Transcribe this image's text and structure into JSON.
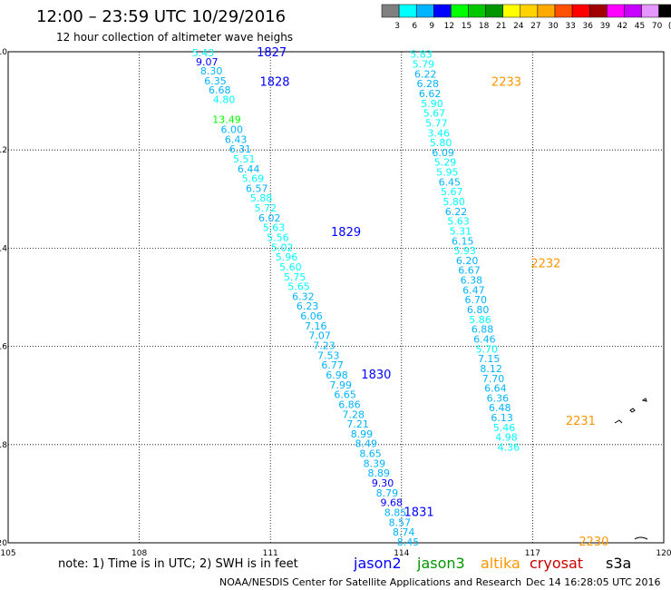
{
  "header": {
    "title": "12:00 – 23:59 UTC 10/29/2016",
    "subtitle": "12 hour collection of altimeter wave heighs"
  },
  "legend": {
    "labels": [
      "3",
      "6",
      "9",
      "12",
      "15",
      "18",
      "21",
      "24",
      "27",
      "30",
      "33",
      "36",
      "39",
      "42",
      "45",
      "70",
      "(ft)"
    ],
    "colors": [
      "#808080",
      "#00ffff",
      "#00b4ff",
      "#0000ff",
      "#00ff00",
      "#00c800",
      "#009600",
      "#ffff00",
      "#ffd200",
      "#ffaa00",
      "#ff5000",
      "#ff0000",
      "#a00000",
      "#ff00ff",
      "#c800ff",
      "#e696ff",
      "#000000"
    ]
  },
  "footer": {
    "note": "note:  1) Time is in UTC;  2) SWH is in feet",
    "missions": [
      {
        "name": "jason2",
        "color": "#0000ff"
      },
      {
        "name": "jason3",
        "color": "#009600"
      },
      {
        "name": "altika",
        "color": "#ff9600"
      },
      {
        "name": "cryosat",
        "color": "#c80000"
      },
      {
        "name": "s3a",
        "color": "#000000"
      }
    ],
    "credit": "NOAA/NESDIS Center for Satellite Applications and Research",
    "timestamp": "Dec 14 16:28:05 UTC 2016"
  },
  "chart_data": {
    "type": "scatter",
    "xlim": [
      105,
      120
    ],
    "ylim": [
      -20,
      -10
    ],
    "x_ticks": [
      "105",
      "108",
      "111",
      "114",
      "117",
      "120"
    ],
    "y_ticks": [
      "-10",
      "-12",
      "-14",
      "-16",
      "-18",
      "-20"
    ],
    "grid": true,
    "tracks": [
      {
        "mission": "jason2",
        "points": [
          {
            "lon": 109.46,
            "lat": -10.02,
            "swh": "5.43"
          },
          {
            "lon": 109.55,
            "lat": -10.2,
            "swh": "9.07"
          },
          {
            "lon": 109.65,
            "lat": -10.39,
            "swh": "8.30"
          },
          {
            "lon": 109.74,
            "lat": -10.59,
            "swh": "6.35"
          },
          {
            "lon": 109.84,
            "lat": -10.78,
            "swh": "6.68"
          },
          {
            "lon": 109.94,
            "lat": -10.97,
            "swh": "4.80"
          },
          {
            "lon": 110.0,
            "lat": -11.38,
            "swh": "13.49"
          },
          {
            "lon": 110.12,
            "lat": -11.58,
            "swh": "6.00"
          },
          {
            "lon": 110.21,
            "lat": -11.78,
            "swh": "6.43"
          },
          {
            "lon": 110.31,
            "lat": -11.98,
            "swh": "6.31"
          },
          {
            "lon": 110.4,
            "lat": -12.18,
            "swh": "5.51"
          },
          {
            "lon": 110.5,
            "lat": -12.38,
            "swh": "6.44"
          },
          {
            "lon": 110.6,
            "lat": -12.58,
            "swh": "5.69"
          },
          {
            "lon": 110.69,
            "lat": -12.78,
            "swh": "6.57"
          },
          {
            "lon": 110.79,
            "lat": -12.98,
            "swh": "5.88"
          },
          {
            "lon": 110.89,
            "lat": -13.18,
            "swh": "5.72"
          },
          {
            "lon": 110.98,
            "lat": -13.38,
            "swh": "6.02"
          },
          {
            "lon": 111.08,
            "lat": -13.58,
            "swh": "5.63"
          },
          {
            "lon": 111.17,
            "lat": -13.78,
            "swh": "5.56"
          },
          {
            "lon": 111.27,
            "lat": -13.98,
            "swh": "5.02"
          },
          {
            "lon": 111.37,
            "lat": -14.18,
            "swh": "5.96"
          },
          {
            "lon": 111.46,
            "lat": -14.38,
            "swh": "5.60"
          },
          {
            "lon": 111.56,
            "lat": -14.58,
            "swh": "5.75"
          },
          {
            "lon": 111.65,
            "lat": -14.78,
            "swh": "5.65"
          },
          {
            "lon": 111.75,
            "lat": -14.98,
            "swh": "6.32"
          },
          {
            "lon": 111.85,
            "lat": -15.18,
            "swh": "6.23"
          },
          {
            "lon": 111.94,
            "lat": -15.38,
            "swh": "6.06"
          },
          {
            "lon": 112.04,
            "lat": -15.58,
            "swh": "7.16"
          },
          {
            "lon": 112.13,
            "lat": -15.78,
            "swh": "7.07"
          },
          {
            "lon": 112.23,
            "lat": -15.98,
            "swh": "7.23"
          },
          {
            "lon": 112.33,
            "lat": -16.18,
            "swh": "7.53"
          },
          {
            "lon": 112.42,
            "lat": -16.38,
            "swh": "6.77"
          },
          {
            "lon": 112.52,
            "lat": -16.58,
            "swh": "6.98"
          },
          {
            "lon": 112.61,
            "lat": -16.78,
            "swh": "7.99"
          },
          {
            "lon": 112.71,
            "lat": -16.98,
            "swh": "6.65"
          },
          {
            "lon": 112.81,
            "lat": -17.18,
            "swh": "6.86"
          },
          {
            "lon": 112.9,
            "lat": -17.38,
            "swh": "7.28"
          },
          {
            "lon": 113.0,
            "lat": -17.58,
            "swh": "7.21"
          },
          {
            "lon": 113.09,
            "lat": -17.78,
            "swh": "8.99"
          },
          {
            "lon": 113.19,
            "lat": -17.98,
            "swh": "8.49"
          },
          {
            "lon": 113.29,
            "lat": -18.18,
            "swh": "8.65"
          },
          {
            "lon": 113.38,
            "lat": -18.38,
            "swh": "8.39"
          },
          {
            "lon": 113.48,
            "lat": -18.58,
            "swh": "8.89"
          },
          {
            "lon": 113.57,
            "lat": -18.78,
            "swh": "9.30"
          },
          {
            "lon": 113.67,
            "lat": -18.98,
            "swh": "8.79"
          },
          {
            "lon": 113.77,
            "lat": -19.18,
            "swh": "9.68"
          },
          {
            "lon": 113.86,
            "lat": -19.38,
            "swh": "8.85"
          },
          {
            "lon": 113.96,
            "lat": -19.58,
            "swh": "8.57"
          },
          {
            "lon": 114.05,
            "lat": -19.78,
            "swh": "8.74"
          },
          {
            "lon": 114.15,
            "lat": -19.98,
            "swh": "8.45"
          }
        ],
        "time_labels": [
          {
            "lon": 111.03,
            "lat": -10.02,
            "text": "1827"
          },
          {
            "lon": 111.1,
            "lat": -10.62,
            "text": "1828"
          },
          {
            "lon": 112.73,
            "lat": -13.68,
            "text": "1829"
          },
          {
            "lon": 113.42,
            "lat": -16.58,
            "text": "1830"
          },
          {
            "lon": 114.4,
            "lat": -19.38,
            "text": "1831"
          }
        ]
      },
      {
        "mission": "altika",
        "points": [
          {
            "lon": 114.45,
            "lat": -10.05,
            "swh": "5.83"
          },
          {
            "lon": 114.5,
            "lat": -10.25,
            "swh": "5.79"
          },
          {
            "lon": 114.55,
            "lat": -10.45,
            "swh": "6.22"
          },
          {
            "lon": 114.6,
            "lat": -10.65,
            "swh": "6.28"
          },
          {
            "lon": 114.65,
            "lat": -10.85,
            "swh": "6.62"
          },
          {
            "lon": 114.7,
            "lat": -11.05,
            "swh": "5.90"
          },
          {
            "lon": 114.75,
            "lat": -11.25,
            "swh": "5.67"
          },
          {
            "lon": 114.8,
            "lat": -11.45,
            "swh": "5.77"
          },
          {
            "lon": 114.85,
            "lat": -11.65,
            "swh": "3.46"
          },
          {
            "lon": 114.9,
            "lat": -11.85,
            "swh": "5.80"
          },
          {
            "lon": 114.95,
            "lat": -12.05,
            "swh": "6.09"
          },
          {
            "lon": 115.0,
            "lat": -12.25,
            "swh": "5.29"
          },
          {
            "lon": 115.05,
            "lat": -12.45,
            "swh": "5.95"
          },
          {
            "lon": 115.1,
            "lat": -12.65,
            "swh": "6.45"
          },
          {
            "lon": 115.15,
            "lat": -12.85,
            "swh": "5.67"
          },
          {
            "lon": 115.2,
            "lat": -13.05,
            "swh": "5.80"
          },
          {
            "lon": 115.25,
            "lat": -13.25,
            "swh": "6.22"
          },
          {
            "lon": 115.3,
            "lat": -13.45,
            "swh": "5.63"
          },
          {
            "lon": 115.35,
            "lat": -13.65,
            "swh": "5.31"
          },
          {
            "lon": 115.4,
            "lat": -13.85,
            "swh": "6.15"
          },
          {
            "lon": 115.45,
            "lat": -14.05,
            "swh": "5.93"
          },
          {
            "lon": 115.5,
            "lat": -14.25,
            "swh": "6.20"
          },
          {
            "lon": 115.55,
            "lat": -14.45,
            "swh": "6.67"
          },
          {
            "lon": 115.6,
            "lat": -14.65,
            "swh": "6.38"
          },
          {
            "lon": 115.65,
            "lat": -14.85,
            "swh": "6.47"
          },
          {
            "lon": 115.7,
            "lat": -15.05,
            "swh": "6.70"
          },
          {
            "lon": 115.75,
            "lat": -15.25,
            "swh": "6.80"
          },
          {
            "lon": 115.8,
            "lat": -15.45,
            "swh": "5.86"
          },
          {
            "lon": 115.85,
            "lat": -15.65,
            "swh": "6.88"
          },
          {
            "lon": 115.9,
            "lat": -15.85,
            "swh": "6.46"
          },
          {
            "lon": 115.95,
            "lat": -16.05,
            "swh": "5.70"
          },
          {
            "lon": 116.0,
            "lat": -16.25,
            "swh": "7.15"
          },
          {
            "lon": 116.05,
            "lat": -16.45,
            "swh": "8.12"
          },
          {
            "lon": 116.1,
            "lat": -16.65,
            "swh": "7.70"
          },
          {
            "lon": 116.15,
            "lat": -16.85,
            "swh": "6.64"
          },
          {
            "lon": 116.2,
            "lat": -17.05,
            "swh": "6.36"
          },
          {
            "lon": 116.25,
            "lat": -17.25,
            "swh": "6.48"
          },
          {
            "lon": 116.3,
            "lat": -17.45,
            "swh": "6.13"
          },
          {
            "lon": 116.35,
            "lat": -17.65,
            "swh": "5.46"
          },
          {
            "lon": 116.4,
            "lat": -17.85,
            "swh": "4.98"
          },
          {
            "lon": 116.45,
            "lat": -18.05,
            "swh": "4.36"
          }
        ],
        "time_labels": [
          {
            "lon": 116.4,
            "lat": -10.62,
            "text": "2233"
          },
          {
            "lon": 117.3,
            "lat": -14.32,
            "text": "2232"
          },
          {
            "lon": 118.1,
            "lat": -17.52,
            "text": "2231"
          },
          {
            "lon": 118.4,
            "lat": -19.98,
            "text": "2230"
          }
        ]
      }
    ]
  }
}
